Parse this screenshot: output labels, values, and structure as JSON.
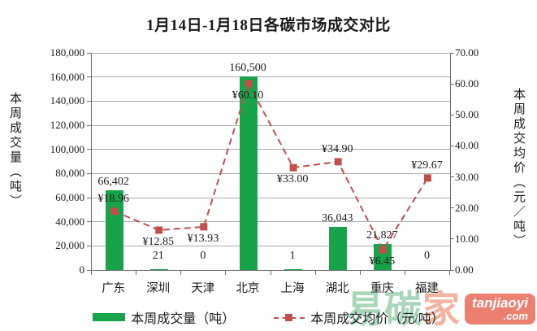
{
  "chart_data": {
    "type": "bar",
    "title": "1月14日-1月18日各碳市场成交对比",
    "categories": [
      "广东",
      "深圳",
      "天津",
      "北京",
      "上海",
      "湖北",
      "重庆",
      "福建"
    ],
    "series": [
      {
        "name": "本周成交量（吨）",
        "type": "bar",
        "axis": "left",
        "color": "#18a34b",
        "values": [
          66402,
          21,
          0,
          160500,
          1,
          36043,
          21827,
          0
        ],
        "labels": [
          "66,402",
          "21",
          "0",
          "160,500",
          "1",
          "36,043",
          "21,827",
          "0"
        ]
      },
      {
        "name": "本周成交均价（元/吨）",
        "type": "line",
        "axis": "right",
        "color": "#c0504d",
        "values": [
          18.96,
          12.85,
          13.93,
          60.1,
          33.0,
          34.9,
          6.45,
          29.67
        ],
        "labels": [
          "¥18.96",
          "¥12.85",
          "¥13.93",
          "¥60.10",
          "¥33.00",
          "¥34.90",
          "¥6.45",
          "¥29.67"
        ]
      }
    ],
    "y_left": {
      "title": "本周成交量（吨）",
      "min": 0,
      "max": 180000,
      "step": 20000
    },
    "y_right": {
      "title": "本周成交均价（元／吨）",
      "min": 0,
      "max": 70,
      "step": 10
    },
    "layout": {
      "grid": true,
      "legend_position": "bottom",
      "price_label_positions": [
        "above",
        "below",
        "below",
        "below",
        "below",
        "above",
        "below",
        "above"
      ]
    },
    "colors": {
      "grid": "#ababab",
      "axis": "#6b6b6b",
      "text": "#1a1a1a"
    }
  },
  "watermark": {
    "chars": [
      "易",
      "碳",
      "家"
    ],
    "char_colors": [
      "#a9d7b9",
      "#a9d7b9",
      "#f2b3a0"
    ],
    "box_color": "#eb8070",
    "box_line1": "tanjiaoyi",
    "box_line2": ".com"
  }
}
